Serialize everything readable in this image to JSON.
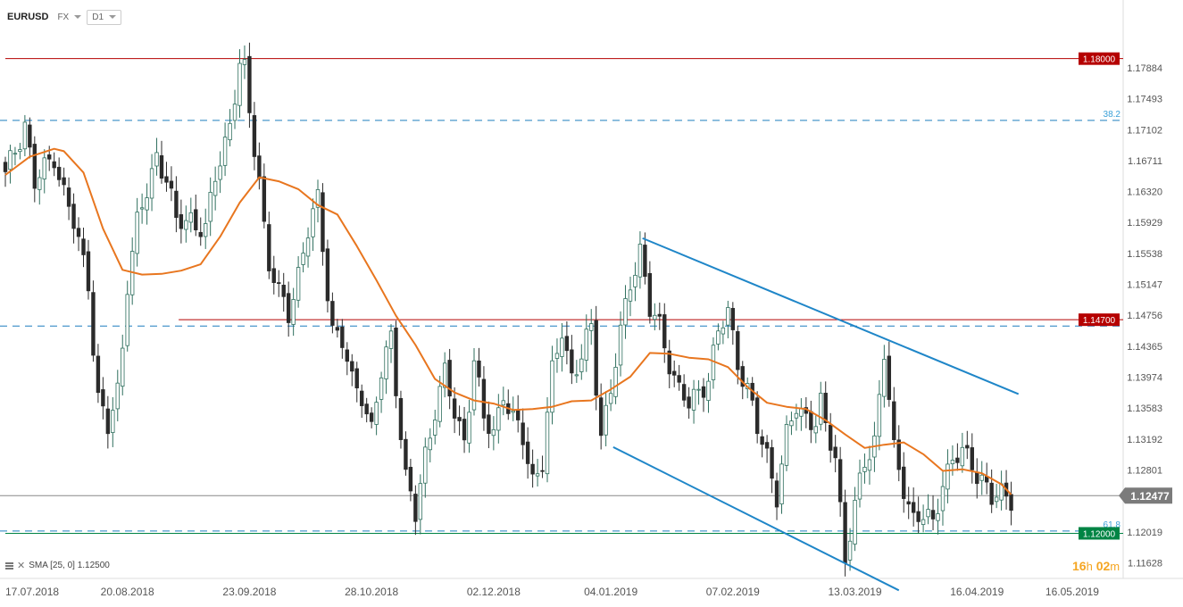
{
  "toolbar": {
    "symbol": "EURUSD",
    "market": "FX",
    "interval": "D1"
  },
  "legend": {
    "label": "SMA [25, 0] 1.12500"
  },
  "timer": {
    "hours": "16",
    "h": "h",
    "minutes": "02",
    "m": "m"
  },
  "chart_data": {
    "type": "candlestick",
    "ylim": [
      1.1143,
      1.1838
    ],
    "y_ticks": [
      "1.17884",
      "1.17493",
      "1.17102",
      "1.16711",
      "1.16320",
      "1.15929",
      "1.15538",
      "1.15147",
      "1.14756",
      "1.14365",
      "1.13974",
      "1.13583",
      "1.13192",
      "1.12801",
      "1.12019",
      "1.11628"
    ],
    "y_tick_values": [
      1.17884,
      1.17493,
      1.17102,
      1.16711,
      1.1632,
      1.15929,
      1.15538,
      1.15147,
      1.14756,
      1.14365,
      1.13974,
      1.13583,
      1.13192,
      1.12801,
      1.12019,
      1.11628
    ],
    "x_ticks": [
      "17.07.2018",
      "20.08.2018",
      "23.09.2018",
      "28.10.2018",
      "02.12.2018",
      "04.01.2019",
      "07.02.2019",
      "13.03.2019",
      "16.04.2019",
      "16.05.2019"
    ],
    "x_tick_values": [
      0,
      25,
      50,
      75,
      100,
      124,
      149,
      174,
      199,
      224
    ],
    "xlim": [
      0,
      239
    ],
    "last_price": {
      "label": "1.12477",
      "value": 1.12477
    },
    "levels": [
      {
        "label": "1.18000",
        "value": 1.18,
        "color": "#b50000",
        "style": "solid",
        "x_start": 0
      },
      {
        "label": "1.14700",
        "value": 1.147,
        "color": "#b50000",
        "style": "solid",
        "x_start": 35.5
      },
      {
        "label": "1.12000",
        "value": 1.12,
        "color": "#008444",
        "style": "solid",
        "x_start": 0
      }
    ],
    "fibo": [
      {
        "label": "38.2",
        "value": 1.1722,
        "color": "#1f7fbf"
      },
      {
        "label": "",
        "value": 1.1462,
        "color": "#1f7fbf"
      },
      {
        "label": "61.8",
        "value": 1.1203,
        "color": "#1f7fbf"
      }
    ],
    "trendlines": [
      {
        "x1": 130.5,
        "y1": 1.1573,
        "x2": 207.5,
        "y2": 1.1376,
        "color": "#1f86c8"
      },
      {
        "x1": 124.5,
        "y1": 1.1309,
        "x2": 183.0,
        "y2": 1.1128,
        "color": "#1f86c8"
      }
    ],
    "colors": {
      "up": "#2f6f5e",
      "down": "#2b2b2b",
      "sma": "#e8761f",
      "last_line": "#888888",
      "last_label": "#7b7b7b",
      "grid_axis": "#dddddd"
    },
    "sma": {
      "name": "SMA [25, 0]",
      "x": [
        0,
        5,
        10,
        12,
        16,
        20,
        24,
        28,
        32,
        36,
        40,
        44,
        48,
        52,
        56,
        60,
        64,
        68,
        72,
        76,
        80,
        84,
        88,
        92,
        96,
        100,
        104,
        108,
        112,
        116,
        120,
        124,
        128,
        132,
        136,
        140,
        144,
        148,
        152,
        156,
        160,
        164,
        168,
        172,
        176,
        180,
        184,
        188,
        192,
        196,
        200,
        204,
        206
      ],
      "y": [
        1.1653,
        1.1676,
        1.1686,
        1.1683,
        1.1656,
        1.1585,
        1.1533,
        1.1527,
        1.1528,
        1.1532,
        1.154,
        1.1575,
        1.1618,
        1.165,
        1.1645,
        1.1635,
        1.1615,
        1.1603,
        1.1563,
        1.152,
        1.1475,
        1.1438,
        1.1395,
        1.1378,
        1.1368,
        1.1364,
        1.1356,
        1.1357,
        1.136,
        1.1367,
        1.1368,
        1.1382,
        1.1398,
        1.1428,
        1.1427,
        1.1422,
        1.142,
        1.141,
        1.1385,
        1.1365,
        1.136,
        1.1357,
        1.1343,
        1.1325,
        1.1308,
        1.1312,
        1.1315,
        1.13,
        1.1279,
        1.1281,
        1.1276,
        1.1262,
        1.1249
      ]
    },
    "candles": {
      "fields": [
        "open",
        "high",
        "low",
        "close"
      ],
      "anchors_x": [
        0,
        4,
        6,
        10,
        12,
        14,
        17,
        18,
        19,
        21,
        23,
        24,
        25,
        27,
        29,
        31,
        33,
        35,
        38,
        41,
        43,
        46,
        48,
        49,
        50,
        52,
        53,
        54,
        56,
        58,
        60,
        62,
        64,
        66,
        67,
        69,
        71,
        73,
        75,
        77,
        79,
        82,
        84,
        86,
        88,
        90,
        92,
        94,
        96,
        98,
        100,
        102,
        104,
        106,
        108,
        110,
        112,
        114,
        116,
        118,
        120,
        121,
        122,
        124,
        126,
        128,
        130,
        132,
        134,
        136,
        138,
        140,
        142,
        144,
        146,
        148,
        150,
        152,
        154,
        156,
        158,
        160,
        162,
        164,
        166,
        167,
        168,
        170,
        172,
        174,
        176,
        178,
        180,
        182,
        184,
        186,
        188,
        190,
        192,
        194,
        196,
        198,
        200,
        202,
        204,
        206
      ],
      "anchors_close": [
        1.165,
        1.172,
        1.164,
        1.168,
        1.163,
        1.159,
        1.152,
        1.144,
        1.137,
        1.133,
        1.138,
        1.144,
        1.152,
        1.159,
        1.163,
        1.168,
        1.165,
        1.159,
        1.16,
        1.158,
        1.165,
        1.172,
        1.179,
        1.178,
        1.173,
        1.165,
        1.159,
        1.154,
        1.15,
        1.148,
        1.153,
        1.158,
        1.162,
        1.151,
        1.146,
        1.144,
        1.139,
        1.138,
        1.133,
        1.14,
        1.145,
        1.127,
        1.122,
        1.13,
        1.136,
        1.14,
        1.135,
        1.132,
        1.142,
        1.134,
        1.133,
        1.138,
        1.134,
        1.132,
        1.127,
        1.129,
        1.14,
        1.146,
        1.14,
        1.142,
        1.146,
        1.139,
        1.133,
        1.138,
        1.145,
        1.152,
        1.156,
        1.148,
        1.146,
        1.142,
        1.138,
        1.136,
        1.138,
        1.14,
        1.145,
        1.148,
        1.142,
        1.138,
        1.133,
        1.13,
        1.125,
        1.132,
        1.136,
        1.135,
        1.134,
        1.136,
        1.133,
        1.13,
        1.117,
        1.123,
        1.129,
        1.132,
        1.143,
        1.13,
        1.126,
        1.122,
        1.122,
        1.121,
        1.127,
        1.129,
        1.13,
        1.129,
        1.127,
        1.124,
        1.125,
        1.1248
      ]
    }
  }
}
